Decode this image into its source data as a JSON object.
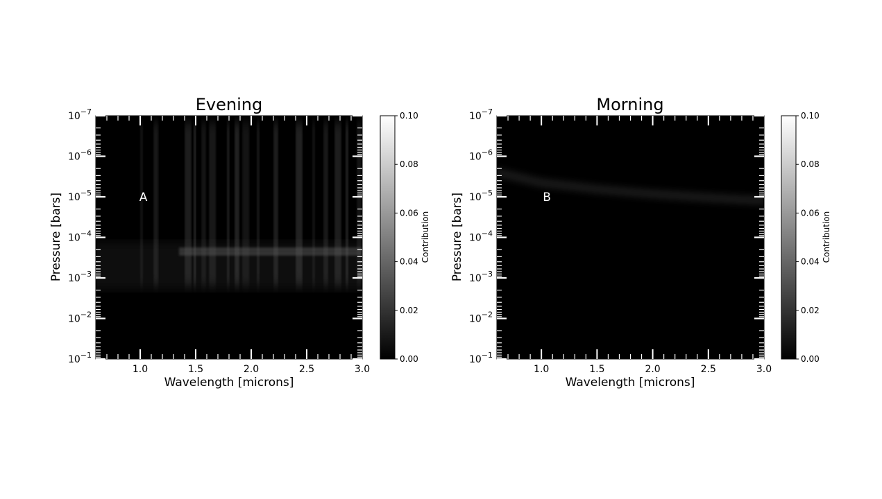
{
  "chart_data": [
    {
      "type": "heatmap",
      "title": "Evening",
      "xlabel": "Wavelength [microns]",
      "ylabel": "Pressure [bars]",
      "xlim": [
        0.6,
        3.0
      ],
      "ylim": [
        0.1,
        1e-07
      ],
      "yscale": "log",
      "x_ticks": [
        "1.0",
        "1.5",
        "2.0",
        "2.5",
        "3.0"
      ],
      "y_ticks": [
        {
          "base": "10",
          "exp": "−7"
        },
        {
          "base": "10",
          "exp": "−6"
        },
        {
          "base": "10",
          "exp": "−5"
        },
        {
          "base": "10",
          "exp": "−4"
        },
        {
          "base": "10",
          "exp": "−3"
        },
        {
          "base": "10",
          "exp": "−2"
        },
        {
          "base": "10",
          "exp": "−1"
        }
      ],
      "colorbar": {
        "label": "Contribution",
        "range": [
          0.0,
          0.1
        ],
        "ticks": [
          "0.00",
          "0.02",
          "0.04",
          "0.06",
          "0.08",
          "0.10"
        ],
        "colormap": "gray"
      },
      "annotation": {
        "text": "A",
        "x": 1.03,
        "pressure": 1e-05
      },
      "features": [
        {
          "kind": "bright_band",
          "x_range": [
            0.6,
            2.45
          ],
          "pressure": 0.002,
          "width_decades": 0.12
        },
        {
          "kind": "faint_band",
          "x_range": [
            1.35,
            3.0
          ],
          "pressure": 0.0002
        },
        {
          "kind": "faint_band",
          "x_range": [
            1.35,
            3.0
          ],
          "pressure": 0.00025
        }
      ]
    },
    {
      "type": "heatmap",
      "title": "Morning",
      "xlabel": "Wavelength [microns]",
      "ylabel": "Pressure [bars]",
      "xlim": [
        0.6,
        3.0
      ],
      "ylim": [
        0.1,
        1e-07
      ],
      "yscale": "log",
      "x_ticks": [
        "1.0",
        "1.5",
        "2.0",
        "2.5",
        "3.0"
      ],
      "y_ticks": [
        {
          "base": "10",
          "exp": "−7"
        },
        {
          "base": "10",
          "exp": "−6"
        },
        {
          "base": "10",
          "exp": "−5"
        },
        {
          "base": "10",
          "exp": "−4"
        },
        {
          "base": "10",
          "exp": "−3"
        },
        {
          "base": "10",
          "exp": "−2"
        },
        {
          "base": "10",
          "exp": "−1"
        }
      ],
      "colorbar": {
        "label": "Contribution",
        "range": [
          0.0,
          0.1
        ],
        "ticks": [
          "0.00",
          "0.02",
          "0.04",
          "0.06",
          "0.08",
          "0.10"
        ],
        "colormap": "gray"
      },
      "annotation": {
        "text": "B",
        "x": 1.05,
        "pressure": 1e-05
      },
      "features": [
        {
          "kind": "bright_band_curve",
          "points": [
            [
              0.6,
              2.5e-06
            ],
            [
              1.0,
              4.5e-06
            ],
            [
              1.5,
              6.5e-06
            ],
            [
              2.0,
              8.5e-06
            ],
            [
              2.5,
              1.05e-05
            ],
            [
              3.0,
              1.25e-05
            ]
          ],
          "width_decades": 0.3
        }
      ]
    }
  ]
}
